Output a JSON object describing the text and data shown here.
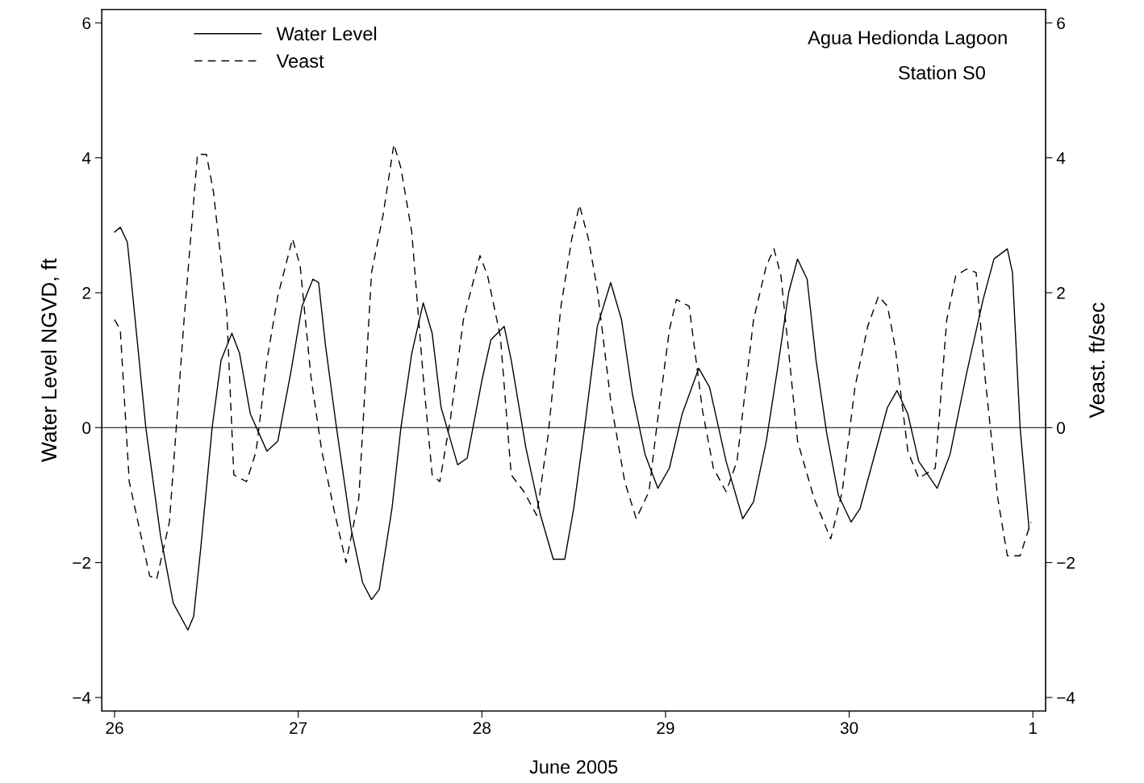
{
  "chart_data": {
    "type": "line",
    "xlabel": "June 2005",
    "ylabel": "Water Level NGVD, ft",
    "y2label": "Veast. ft/sec",
    "annotations": [
      "Agua Hedionda Lagoon",
      "Station S0"
    ],
    "xlim": [
      "2005-06-25T22:20",
      "2005-07-01T01:40"
    ],
    "xticks": [
      {
        "value": "2005-06-26",
        "label": "26"
      },
      {
        "value": "2005-06-27",
        "label": "27"
      },
      {
        "value": "2005-06-28",
        "label": "28"
      },
      {
        "value": "2005-06-29",
        "label": "29"
      },
      {
        "value": "2005-06-30",
        "label": "30"
      },
      {
        "value": "2005-07-01",
        "label": "1"
      }
    ],
    "ylim": [
      -4.2,
      6.2
    ],
    "yticks": [
      {
        "value": -4,
        "label": "−4"
      },
      {
        "value": -2,
        "label": "−2"
      },
      0,
      2,
      4,
      6
    ],
    "y2lim": [
      -4.2,
      6.2
    ],
    "y2ticks": [
      {
        "value": -4,
        "label": "−4"
      },
      {
        "value": -2,
        "label": "−2"
      },
      0,
      2,
      4,
      6
    ],
    "grid": false,
    "legend": "top left",
    "marker": "none",
    "ref_lines": [
      {
        "axis": "y",
        "value": 0,
        "color": "#000000",
        "line_style": "solid"
      }
    ],
    "series": [
      {
        "name": "Water Level",
        "color": "#000000",
        "line_style": "solid",
        "x": [
          "2005-06-26T00:00",
          "2005-06-26T00:45",
          "2005-06-26T01:40",
          "2005-06-26T02:10",
          "2005-06-26T04:05",
          "2005-06-26T06:00",
          "2005-06-26T07:40",
          "2005-06-26T09:35",
          "2005-06-26T10:20",
          "2005-06-26T11:15",
          "2005-06-26T12:45",
          "2005-06-26T13:55",
          "2005-06-26T15:20",
          "2005-06-26T16:20",
          "2005-06-26T17:45",
          "2005-06-26T19:55",
          "2005-06-26T21:20",
          "2005-06-26T23:00",
          "2005-06-27T00:30",
          "2005-06-27T01:55",
          "2005-06-27T02:40",
          "2005-06-27T03:35",
          "2005-06-27T05:00",
          "2005-06-27T06:55",
          "2005-06-27T08:25",
          "2005-06-27T09:35",
          "2005-06-27T10:35",
          "2005-06-27T12:15",
          "2005-06-27T13:25",
          "2005-06-27T14:50",
          "2005-06-27T16:20",
          "2005-06-27T17:30",
          "2005-06-27T18:40",
          "2005-06-27T20:50",
          "2005-06-27T22:05",
          "2005-06-28T00:00",
          "2005-06-28T01:10",
          "2005-06-28T02:55",
          "2005-06-28T03:50",
          "2005-06-28T05:45",
          "2005-06-28T07:40",
          "2005-06-28T09:20",
          "2005-06-28T10:50",
          "2005-06-28T12:00",
          "2005-06-28T13:25",
          "2005-06-28T15:05",
          "2005-06-28T16:50",
          "2005-06-28T18:15",
          "2005-06-28T19:40",
          "2005-06-28T21:20",
          "2005-06-28T23:00",
          "2005-06-29T00:30",
          "2005-06-29T02:10",
          "2005-06-29T04:20",
          "2005-06-29T05:45",
          "2005-06-29T07:55",
          "2005-06-29T10:05",
          "2005-06-29T11:30",
          "2005-06-29T13:10",
          "2005-06-29T14:40",
          "2005-06-29T16:05",
          "2005-06-29T17:15",
          "2005-06-29T18:30",
          "2005-06-29T19:40",
          "2005-06-29T21:05",
          "2005-06-29T22:35",
          "2005-06-30T00:15",
          "2005-06-30T01:25",
          "2005-06-30T03:20",
          "2005-06-30T05:00",
          "2005-06-30T06:15",
          "2005-06-30T07:40",
          "2005-06-30T09:05",
          "2005-06-30T11:30",
          "2005-06-30T13:10",
          "2005-06-30T15:20",
          "2005-06-30T17:30",
          "2005-06-30T18:55",
          "2005-06-30T20:40",
          "2005-06-30T21:20",
          "2005-06-30T22:20",
          "2005-06-30T23:30"
        ],
        "values": [
          2.9,
          2.97,
          2.75,
          2.2,
          0,
          -1.6,
          -2.6,
          -3.0,
          -2.8,
          -1.8,
          0,
          1.0,
          1.4,
          1.1,
          0.2,
          -0.35,
          -0.2,
          0.8,
          1.8,
          2.2,
          2.15,
          1.2,
          0,
          -1.5,
          -2.3,
          -2.55,
          -2.4,
          -1.2,
          0,
          1.1,
          1.85,
          1.4,
          0.3,
          -0.55,
          -0.45,
          0.7,
          1.3,
          1.5,
          1.0,
          -0.3,
          -1.3,
          -1.95,
          -1.95,
          -1.2,
          0,
          1.5,
          2.15,
          1.6,
          0.5,
          -0.4,
          -0.9,
          -0.6,
          0.2,
          0.88,
          0.6,
          -0.5,
          -1.35,
          -1.1,
          -0.2,
          0.9,
          2.0,
          2.5,
          2.2,
          1.0,
          -0.1,
          -1.0,
          -1.4,
          -1.2,
          -0.4,
          0.3,
          0.55,
          0.2,
          -0.5,
          -0.9,
          -0.4,
          0.8,
          1.9,
          2.5,
          2.65,
          2.3,
          0,
          -1.5
        ]
      },
      {
        "name": "Veast",
        "color": "#000000",
        "line_style": "dashed",
        "x": [
          "2005-06-26T00:00",
          "2005-06-26T00:45",
          "2005-06-26T01:55",
          "2005-06-26T04:35",
          "2005-06-26T05:30",
          "2005-06-26T07:10",
          "2005-06-26T09:05",
          "2005-06-26T10:50",
          "2005-06-26T12:00",
          "2005-06-26T12:55",
          "2005-06-26T14:40",
          "2005-06-26T15:35",
          "2005-06-26T17:15",
          "2005-06-26T18:30",
          "2005-06-26T19:55",
          "2005-06-26T21:20",
          "2005-06-26T23:15",
          "2005-06-27T00:15",
          "2005-06-27T01:40",
          "2005-06-27T03:05",
          "2005-06-27T04:50",
          "2005-06-27T06:15",
          "2005-06-27T07:55",
          "2005-06-27T09:35",
          "2005-06-27T11:05",
          "2005-06-27T12:30",
          "2005-06-27T13:25",
          "2005-06-27T14:50",
          "2005-06-27T16:20",
          "2005-06-27T17:30",
          "2005-06-27T18:30",
          "2005-06-27T19:55",
          "2005-06-27T21:35",
          "2005-06-27T23:45",
          "2005-06-28T00:45",
          "2005-06-28T02:25",
          "2005-06-28T03:50",
          "2005-06-28T05:30",
          "2005-06-28T07:10",
          "2005-06-28T08:40",
          "2005-06-28T10:20",
          "2005-06-28T11:45",
          "2005-06-28T12:45",
          "2005-06-28T13:55",
          "2005-06-28T15:05",
          "2005-06-28T16:50",
          "2005-06-28T18:40",
          "2005-06-28T20:10",
          "2005-06-28T21:50",
          "2005-06-28T22:50",
          "2005-06-29T00:30",
          "2005-06-29T01:25",
          "2005-06-29T03:05",
          "2005-06-29T04:50",
          "2005-06-29T06:15",
          "2005-06-29T07:55",
          "2005-06-29T09:20",
          "2005-06-29T11:30",
          "2005-06-29T13:10",
          "2005-06-29T14:10",
          "2005-06-29T15:05",
          "2005-06-29T16:20",
          "2005-06-29T17:15",
          "2005-06-29T19:25",
          "2005-06-29T21:35",
          "2005-06-29T23:05",
          "2005-06-30T00:45",
          "2005-06-30T02:25",
          "2005-06-30T03:50",
          "2005-06-30T05:00",
          "2005-06-30T06:00",
          "2005-06-30T07:40",
          "2005-06-30T09:05",
          "2005-06-30T11:15",
          "2005-06-30T12:45",
          "2005-06-30T13:55",
          "2005-06-30T15:20",
          "2005-06-30T16:35",
          "2005-06-30T17:45",
          "2005-06-30T19:25",
          "2005-06-30T20:40",
          "2005-06-30T22:20",
          "2005-06-30T23:45"
        ],
        "values": [
          1.6,
          1.45,
          -0.8,
          -2.2,
          -2.25,
          -1.4,
          1.6,
          4.05,
          4.05,
          3.5,
          1.7,
          -0.7,
          -0.8,
          -0.35,
          1.0,
          1.95,
          2.8,
          2.4,
          0.75,
          -0.35,
          -1.3,
          -2.0,
          -1.05,
          2.3,
          3.15,
          4.2,
          3.85,
          2.9,
          0.75,
          -0.7,
          -0.8,
          0.15,
          1.6,
          2.55,
          2.25,
          1.35,
          -0.7,
          -0.95,
          -1.3,
          -0.1,
          1.8,
          2.8,
          3.3,
          2.8,
          2.05,
          0.4,
          -0.8,
          -1.35,
          -0.95,
          0.0,
          1.45,
          1.9,
          1.8,
          0.25,
          -0.6,
          -0.95,
          -0.5,
          1.6,
          2.4,
          2.65,
          2.25,
          0.85,
          -0.2,
          -1.05,
          -1.65,
          -0.95,
          0.6,
          1.5,
          1.95,
          1.8,
          1.2,
          -0.35,
          -0.75,
          -0.6,
          1.6,
          2.25,
          2.35,
          2.3,
          0.75,
          -1.05,
          -1.9,
          -1.9,
          -1.4
        ]
      }
    ]
  }
}
